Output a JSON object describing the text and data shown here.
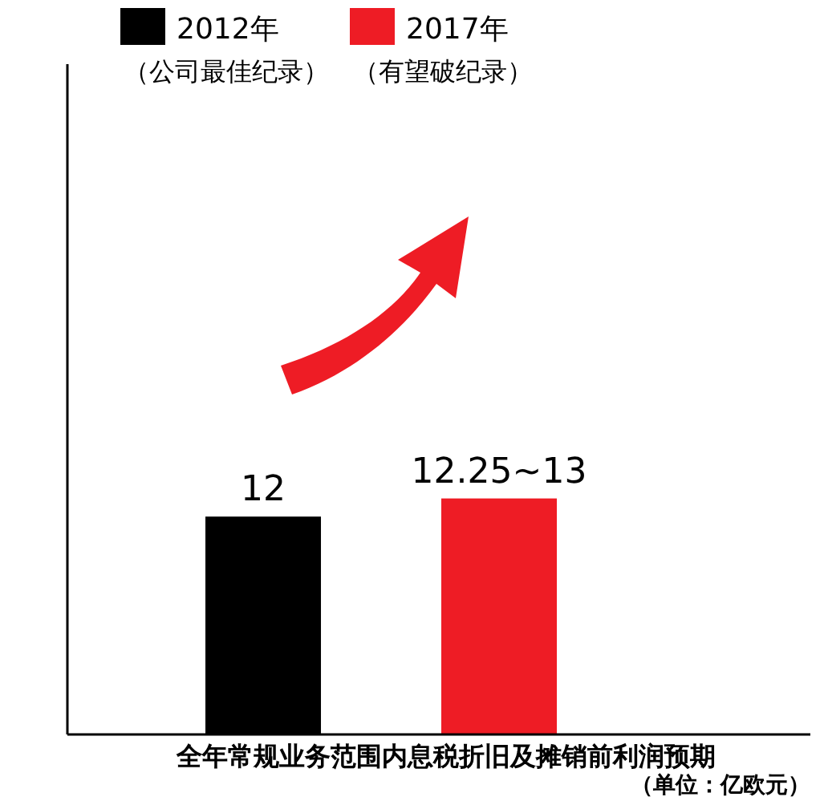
{
  "chart_data": {
    "type": "bar",
    "categories": [
      null,
      null
    ],
    "series": [
      {
        "name": "2012年（公司最佳纪录）",
        "color": "#000000",
        "values": [
          12,
          null
        ],
        "value_labels": [
          "12",
          null
        ]
      },
      {
        "name": "2017年（有望破纪录）",
        "color": "#ee1c25",
        "values": [
          null,
          13
        ],
        "value_labels": [
          null,
          "12.25~13"
        ]
      }
    ],
    "stacked": true,
    "legend": "top",
    "xlabel": "全年常规业务范围内息税折旧及摊销前利润预期",
    "annotations": [
      "（单位：亿欧元）"
    ]
  }
}
